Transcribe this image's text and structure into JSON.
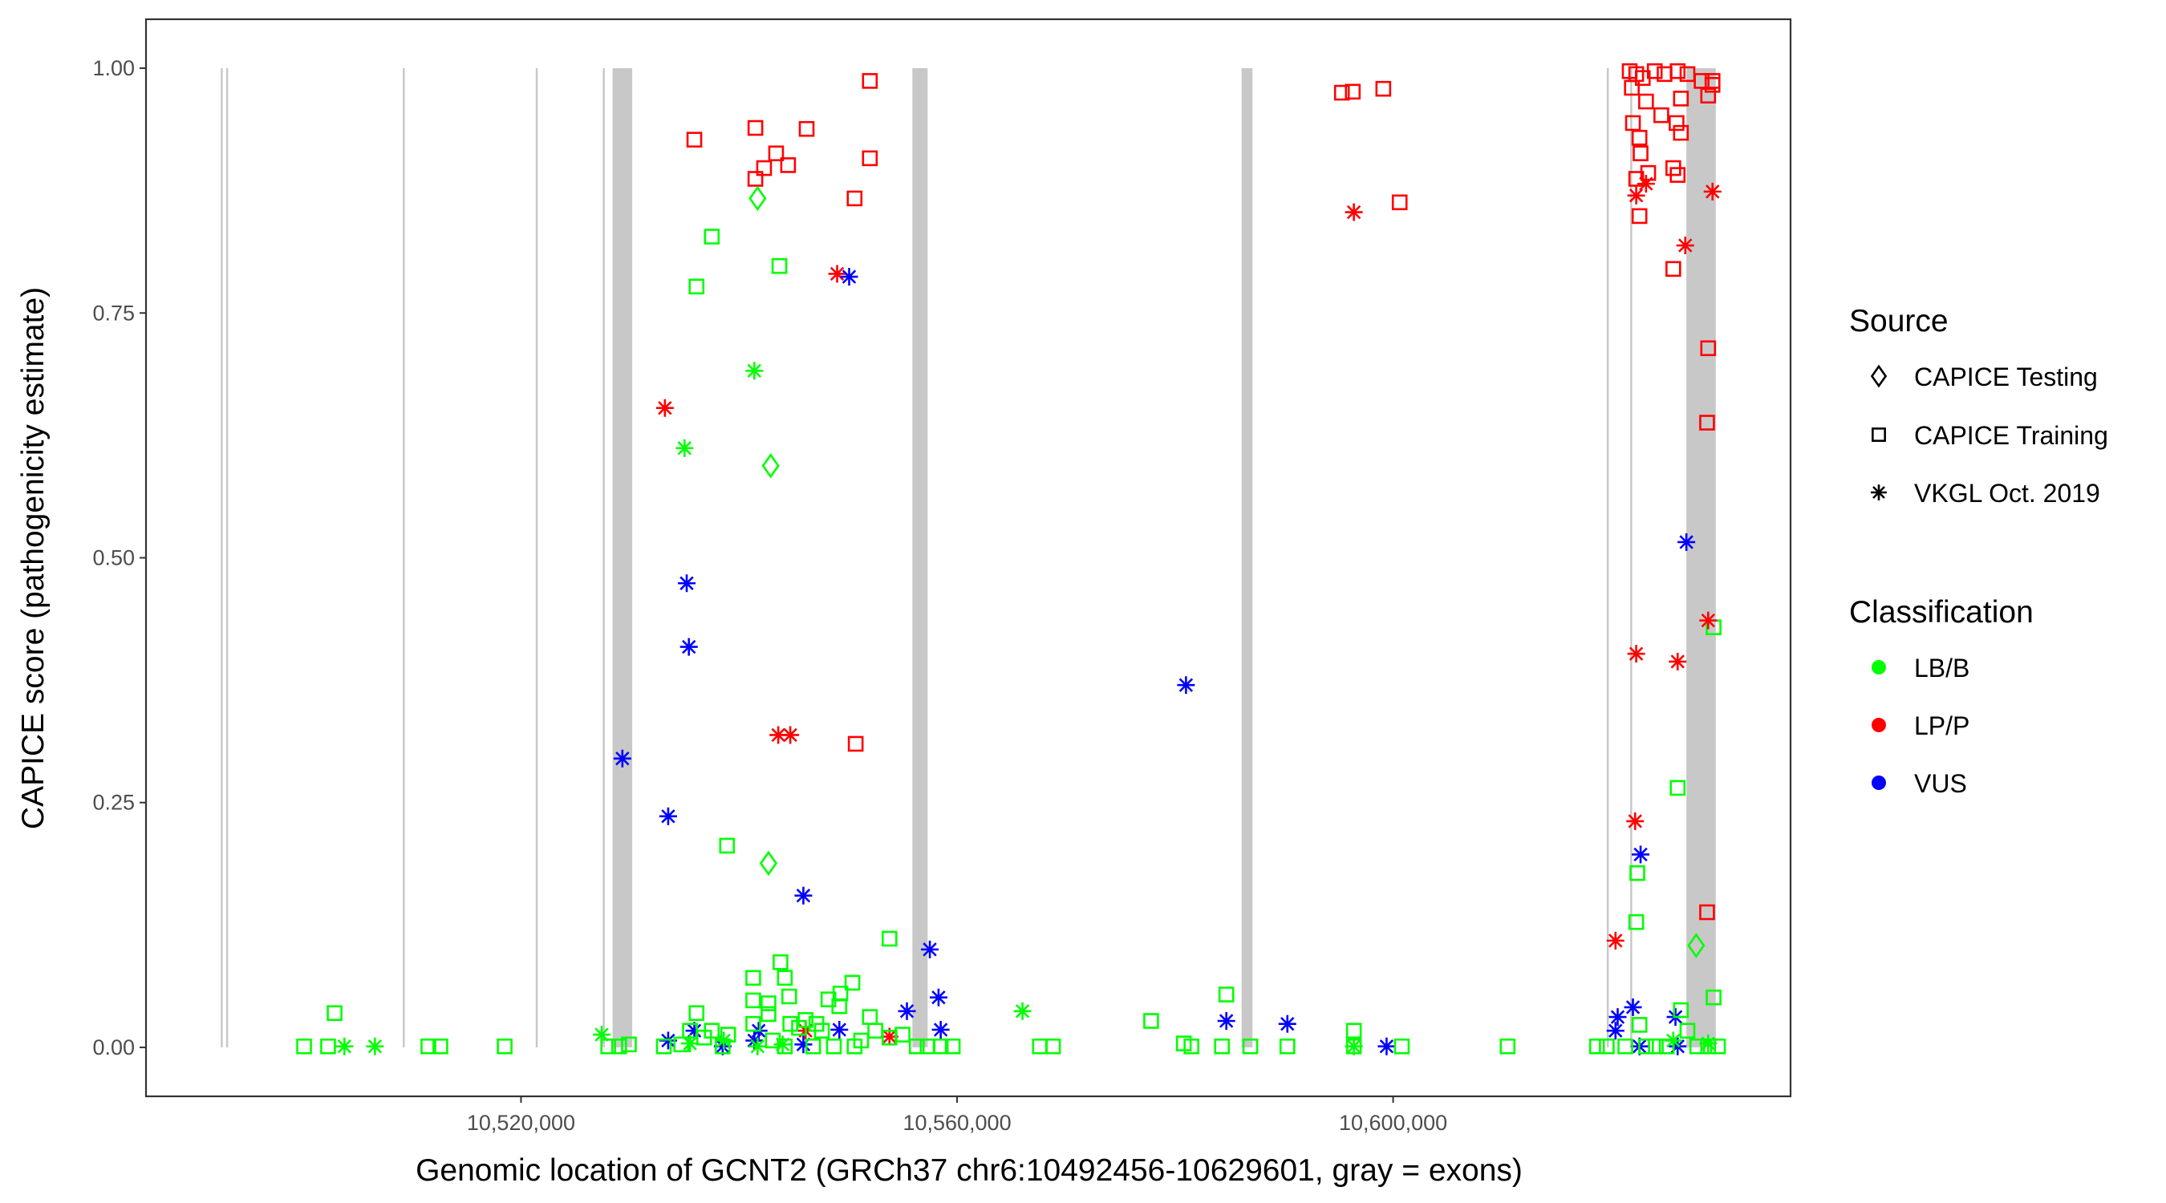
{
  "chart_data": {
    "type": "scatter",
    "xlabel": "Genomic location of GCNT2 (GRCh37 chr6:10492456-10629601, gray = exons)",
    "ylabel": "CAPICE score (pathogenicity estimate)",
    "xlim": [
      10485599,
      10636458
    ],
    "ylim": [
      -0.05,
      1.05
    ],
    "x_ticks": [
      10520000,
      10560000,
      10600000
    ],
    "x_tick_labels": [
      "10,520,000",
      "10,560,000",
      "10,600,000"
    ],
    "y_ticks": [
      0,
      0.25,
      0.5,
      0.75,
      1.0
    ],
    "y_tick_labels": [
      "0.00",
      "0.25",
      "0.50",
      "0.75",
      "1.00"
    ],
    "grid": false,
    "legend_placement": "right",
    "exon_color": "#c8c8c8",
    "exons": [
      [
        10492456,
        10492500
      ],
      [
        10492950,
        10493000
      ],
      [
        10509150,
        10509200
      ],
      [
        10521350,
        10521450
      ],
      [
        10527500,
        10527560
      ],
      [
        10528400,
        10530200
      ],
      [
        10555900,
        10557300
      ],
      [
        10586100,
        10587100
      ],
      [
        10619600,
        10619700
      ],
      [
        10621750,
        10621850
      ],
      [
        10626900,
        10629601
      ]
    ],
    "legend": {
      "source_title": "Source",
      "sources": [
        {
          "label": "CAPICE Testing",
          "shape": "diamond"
        },
        {
          "label": "CAPICE Training",
          "shape": "square"
        },
        {
          "label": "VKGL Oct. 2019",
          "shape": "asterisk"
        }
      ],
      "class_title": "Classification",
      "classes": [
        {
          "label": "LB/B",
          "color": "#00ff00"
        },
        {
          "label": "LP/P",
          "color": "#ff0000"
        },
        {
          "label": "VUS",
          "color": "#0000ff"
        }
      ]
    },
    "point_fields": [
      "position",
      "score",
      "source_index",
      "class_index"
    ],
    "points": [
      [
        10552000,
        0.987,
        1,
        1
      ],
      [
        10535900,
        0.927,
        1,
        1
      ],
      [
        10541500,
        0.939,
        1,
        1
      ],
      [
        10546200,
        0.938,
        1,
        1
      ],
      [
        10543400,
        0.913,
        1,
        1
      ],
      [
        10542300,
        0.898,
        1,
        1
      ],
      [
        10544500,
        0.901,
        1,
        1
      ],
      [
        10552000,
        0.908,
        1,
        1
      ],
      [
        10541500,
        0.887,
        1,
        1
      ],
      [
        10550600,
        0.867,
        1,
        1
      ],
      [
        10550700,
        0.31,
        1,
        1
      ],
      [
        10541700,
        0.867,
        0,
        0
      ],
      [
        10542900,
        0.594,
        0,
        0
      ],
      [
        10542700,
        0.188,
        0,
        0
      ],
      [
        10627800,
        0.104,
        0,
        0
      ],
      [
        10537500,
        0.828,
        1,
        0
      ],
      [
        10536100,
        0.777,
        1,
        0
      ],
      [
        10543700,
        0.798,
        1,
        0
      ],
      [
        10538900,
        0.206,
        1,
        0
      ],
      [
        10626100,
        0.265,
        1,
        0
      ],
      [
        10622400,
        0.178,
        1,
        0
      ],
      [
        10622300,
        0.128,
        1,
        0
      ],
      [
        10629400,
        0.429,
        1,
        0
      ],
      [
        10553800,
        0.111,
        1,
        0
      ],
      [
        10502900,
        0.035,
        1,
        0
      ],
      [
        10629400,
        0.051,
        1,
        0
      ],
      [
        10541400,
        0.691,
        2,
        0
      ],
      [
        10535000,
        0.612,
        2,
        0
      ],
      [
        10566000,
        0.037,
        2,
        0
      ],
      [
        10527400,
        0.013,
        2,
        0
      ],
      [
        10533200,
        0.653,
        2,
        1
      ],
      [
        10549000,
        0.79,
        2,
        1
      ],
      [
        10543600,
        0.319,
        2,
        1
      ],
      [
        10544700,
        0.319,
        2,
        1
      ],
      [
        10596400,
        0.853,
        2,
        1
      ],
      [
        10622300,
        0.402,
        2,
        1
      ],
      [
        10626100,
        0.394,
        2,
        1
      ],
      [
        10628900,
        0.436,
        2,
        1
      ],
      [
        10622200,
        0.231,
        2,
        1
      ],
      [
        10620400,
        0.109,
        2,
        1
      ],
      [
        10629300,
        0.874,
        2,
        1
      ],
      [
        10626800,
        0.819,
        2,
        1
      ],
      [
        10622300,
        0.87,
        2,
        1
      ],
      [
        10623200,
        0.882,
        2,
        1
      ],
      [
        10546100,
        0.017,
        2,
        1
      ],
      [
        10553800,
        0.011,
        2,
        1
      ],
      [
        10550100,
        0.787,
        2,
        2
      ],
      [
        10535200,
        0.474,
        2,
        2
      ],
      [
        10535400,
        0.409,
        2,
        2
      ],
      [
        10529300,
        0.295,
        2,
        2
      ],
      [
        10533500,
        0.236,
        2,
        2
      ],
      [
        10545900,
        0.155,
        2,
        2
      ],
      [
        10557500,
        0.1,
        2,
        2
      ],
      [
        10558300,
        0.051,
        2,
        2
      ],
      [
        10555400,
        0.037,
        2,
        2
      ],
      [
        10581000,
        0.37,
        2,
        2
      ],
      [
        10626900,
        0.516,
        2,
        2
      ],
      [
        10622700,
        0.197,
        2,
        2
      ],
      [
        10584700,
        0.027,
        2,
        2
      ],
      [
        10590300,
        0.024,
        2,
        2
      ],
      [
        10533500,
        0.007,
        2,
        2
      ],
      [
        10541800,
        0.017,
        2,
        2
      ],
      [
        10549200,
        0.018,
        2,
        2
      ],
      [
        10558500,
        0.018,
        2,
        2
      ],
      [
        10599400,
        0.001,
        2,
        2
      ],
      [
        10622000,
        0.041,
        2,
        2
      ],
      [
        10620600,
        0.031,
        2,
        2
      ],
      [
        10625900,
        0.031,
        2,
        2
      ],
      [
        10622600,
        0.001,
        2,
        2
      ],
      [
        10626100,
        0.001,
        2,
        2
      ],
      [
        10620400,
        0.017,
        2,
        2
      ],
      [
        10538500,
        0.001,
        2,
        2
      ],
      [
        10535900,
        0.017,
        2,
        2
      ],
      [
        10545900,
        0.003,
        2,
        2
      ],
      [
        10541400,
        0.007,
        2,
        2
      ],
      [
        10595300,
        0.975,
        1,
        1
      ],
      [
        10596300,
        0.976,
        1,
        1
      ],
      [
        10599100,
        0.979,
        1,
        1
      ],
      [
        10600600,
        0.863,
        1,
        1
      ],
      [
        10621700,
        0.997,
        1,
        1
      ],
      [
        10622300,
        0.994,
        1,
        1
      ],
      [
        10622900,
        0.99,
        1,
        1
      ],
      [
        10624000,
        0.997,
        1,
        1
      ],
      [
        10624900,
        0.994,
        1,
        1
      ],
      [
        10626100,
        0.997,
        1,
        1
      ],
      [
        10627000,
        0.994,
        1,
        1
      ],
      [
        10628300,
        0.987,
        1,
        1
      ],
      [
        10629300,
        0.983,
        1,
        1
      ],
      [
        10621900,
        0.98,
        1,
        1
      ],
      [
        10623200,
        0.966,
        1,
        1
      ],
      [
        10624600,
        0.952,
        1,
        1
      ],
      [
        10626400,
        0.969,
        1,
        1
      ],
      [
        10628900,
        0.972,
        1,
        1
      ],
      [
        10622000,
        0.944,
        1,
        1
      ],
      [
        10622600,
        0.929,
        1,
        1
      ],
      [
        10626000,
        0.944,
        1,
        1
      ],
      [
        10626400,
        0.934,
        1,
        1
      ],
      [
        10622700,
        0.913,
        1,
        1
      ],
      [
        10625700,
        0.898,
        1,
        1
      ],
      [
        10623400,
        0.893,
        1,
        1
      ],
      [
        10626100,
        0.891,
        1,
        1
      ],
      [
        10622300,
        0.887,
        1,
        1
      ],
      [
        10622600,
        0.849,
        1,
        1
      ],
      [
        10625700,
        0.795,
        1,
        1
      ],
      [
        10628900,
        0.714,
        1,
        1
      ],
      [
        10628800,
        0.638,
        1,
        1
      ],
      [
        10628800,
        0.138,
        1,
        1
      ],
      [
        10629300,
        0.987,
        1,
        1
      ],
      [
        10500100,
        0.001,
        1,
        0
      ],
      [
        10502300,
        0.001,
        1,
        0
      ],
      [
        10511500,
        0.001,
        1,
        0
      ],
      [
        10512600,
        0.001,
        1,
        0
      ],
      [
        10518500,
        0.001,
        1,
        0
      ],
      [
        10528000,
        0.001,
        1,
        0
      ],
      [
        10529000,
        0.001,
        1,
        0
      ],
      [
        10529900,
        0.003,
        1,
        0
      ],
      [
        10533100,
        0.001,
        1,
        0
      ],
      [
        10534700,
        0.003,
        1,
        0
      ],
      [
        10536100,
        0.035,
        1,
        0
      ],
      [
        10535500,
        0.017,
        1,
        0
      ],
      [
        10536800,
        0.01,
        1,
        0
      ],
      [
        10537500,
        0.017,
        1,
        0
      ],
      [
        10538500,
        0.001,
        1,
        0
      ],
      [
        10539000,
        0.013,
        1,
        0
      ],
      [
        10541300,
        0.071,
        1,
        0
      ],
      [
        10541300,
        0.048,
        1,
        0
      ],
      [
        10541300,
        0.024,
        1,
        0
      ],
      [
        10542700,
        0.045,
        1,
        0
      ],
      [
        10542700,
        0.034,
        1,
        0
      ],
      [
        10543800,
        0.087,
        1,
        0
      ],
      [
        10544200,
        0.071,
        1,
        0
      ],
      [
        10544600,
        0.052,
        1,
        0
      ],
      [
        10544700,
        0.024,
        1,
        0
      ],
      [
        10545500,
        0.02,
        1,
        0
      ],
      [
        10546100,
        0.028,
        1,
        0
      ],
      [
        10547100,
        0.024,
        1,
        0
      ],
      [
        10547600,
        0.017,
        1,
        0
      ],
      [
        10548200,
        0.049,
        1,
        0
      ],
      [
        10549300,
        0.055,
        1,
        0
      ],
      [
        10550400,
        0.066,
        1,
        0
      ],
      [
        10549200,
        0.042,
        1,
        0
      ],
      [
        10552000,
        0.031,
        1,
        0
      ],
      [
        10552500,
        0.017,
        1,
        0
      ],
      [
        10553800,
        0.01,
        1,
        0
      ],
      [
        10555000,
        0.013,
        1,
        0
      ],
      [
        10556300,
        0.001,
        1,
        0
      ],
      [
        10557300,
        0.001,
        1,
        0
      ],
      [
        10558500,
        0.001,
        1,
        0
      ],
      [
        10559600,
        0.001,
        1,
        0
      ],
      [
        10567600,
        0.001,
        1,
        0
      ],
      [
        10568800,
        0.001,
        1,
        0
      ],
      [
        10577800,
        0.027,
        1,
        0
      ],
      [
        10580800,
        0.004,
        1,
        0
      ],
      [
        10581500,
        0.001,
        1,
        0
      ],
      [
        10584700,
        0.054,
        1,
        0
      ],
      [
        10584300,
        0.001,
        1,
        0
      ],
      [
        10586900,
        0.001,
        1,
        0
      ],
      [
        10590300,
        0.001,
        1,
        0
      ],
      [
        10596400,
        0.017,
        1,
        0
      ],
      [
        10596400,
        0.001,
        1,
        0
      ],
      [
        10600800,
        0.001,
        1,
        0
      ],
      [
        10610500,
        0.001,
        1,
        0
      ],
      [
        10618700,
        0.001,
        1,
        0
      ],
      [
        10619600,
        0.001,
        1,
        0
      ],
      [
        10621300,
        0.001,
        1,
        0
      ],
      [
        10623200,
        0.001,
        1,
        0
      ],
      [
        10624100,
        0.001,
        1,
        0
      ],
      [
        10625100,
        0.001,
        1,
        0
      ],
      [
        10627000,
        0.017,
        1,
        0
      ],
      [
        10627900,
        0.001,
        1,
        0
      ],
      [
        10628900,
        0.001,
        1,
        0
      ],
      [
        10629800,
        0.001,
        1,
        0
      ],
      [
        10622600,
        0.023,
        1,
        0
      ],
      [
        10626400,
        0.038,
        1,
        0
      ],
      [
        10543100,
        0.007,
        1,
        0
      ],
      [
        10544200,
        0.001,
        1,
        0
      ],
      [
        10546800,
        0.001,
        1,
        0
      ],
      [
        10548700,
        0.001,
        1,
        0
      ],
      [
        10550600,
        0.001,
        1,
        0
      ],
      [
        10551200,
        0.007,
        1,
        0
      ],
      [
        10503800,
        0.001,
        2,
        0
      ],
      [
        10506600,
        0.001,
        2,
        0
      ],
      [
        10535500,
        0.004,
        2,
        0
      ],
      [
        10538600,
        0.007,
        2,
        0
      ],
      [
        10541700,
        0.001,
        2,
        0
      ],
      [
        10544000,
        0.003,
        2,
        0
      ],
      [
        10596400,
        0.001,
        2,
        0
      ],
      [
        10625700,
        0.007,
        2,
        0
      ],
      [
        10628900,
        0.004,
        2,
        0
      ]
    ]
  }
}
